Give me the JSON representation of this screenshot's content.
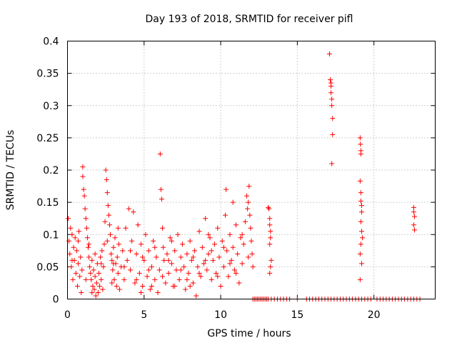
{
  "chart_data": {
    "type": "scatter",
    "title": "Day 193 of 2018, SRMTID for receiver pifl",
    "xlabel": "GPS time / hours",
    "ylabel": "SRMTID / TECUs",
    "xlim": [
      0,
      24
    ],
    "ylim": [
      0,
      0.4
    ],
    "xticks": [
      0,
      5,
      10,
      15,
      20
    ],
    "xtick_labels": [
      "0",
      "5",
      "10",
      "15",
      "20"
    ],
    "yticks": [
      0,
      0.05,
      0.1,
      0.15,
      0.2,
      0.25,
      0.3,
      0.35,
      0.4
    ],
    "ytick_labels": [
      "0",
      "0.05",
      "0.1",
      "0.15",
      "0.2",
      "0.25",
      "0.3",
      "0.35",
      "0.4"
    ],
    "grid": true,
    "marker": "plus",
    "color": "#ff0000",
    "series": [
      {
        "name": "SRMTID",
        "points": [
          [
            0.05,
            0.125
          ],
          [
            0.1,
            0.09
          ],
          [
            0.15,
            0.07
          ],
          [
            0.2,
            0.11
          ],
          [
            0.25,
            0.05
          ],
          [
            0.3,
            0.1
          ],
          [
            0.35,
            0.03
          ],
          [
            0.4,
            0.08
          ],
          [
            0.45,
            0.06
          ],
          [
            0.5,
            0.095
          ],
          [
            0.55,
            0.04
          ],
          [
            0.6,
            0.075
          ],
          [
            0.65,
            0.02
          ],
          [
            0.7,
            0.055
          ],
          [
            0.75,
            0.105
          ],
          [
            0.8,
            0.035
          ],
          [
            0.85,
            0.065
          ],
          [
            0.9,
            0.01
          ],
          [
            0.95,
            0.045
          ],
          [
            1.0,
            0.205
          ],
          [
            1.0,
            0.19
          ],
          [
            1.05,
            0.17
          ],
          [
            1.1,
            0.16
          ],
          [
            1.15,
            0.14
          ],
          [
            1.2,
            0.125
          ],
          [
            1.25,
            0.11
          ],
          [
            1.3,
            0.095
          ],
          [
            1.35,
            0.08
          ],
          [
            1.4,
            0.065
          ],
          [
            1.45,
            0.05
          ],
          [
            1.5,
            0.04
          ],
          [
            1.55,
            0.03
          ],
          [
            1.6,
            0.06
          ],
          [
            1.65,
            0.02
          ],
          [
            1.7,
            0.045
          ],
          [
            1.75,
            0.015
          ],
          [
            1.8,
            0.035
          ],
          [
            1.85,
            0.005
          ],
          [
            1.9,
            0.025
          ],
          [
            1.95,
            0.055
          ],
          [
            2.0,
            0.01
          ],
          [
            2.05,
            0.04
          ],
          [
            2.1,
            0.02
          ],
          [
            2.15,
            0.065
          ],
          [
            2.2,
            0.03
          ],
          [
            2.25,
            0.075
          ],
          [
            2.3,
            0.015
          ],
          [
            2.35,
            0.05
          ],
          [
            2.4,
            0.085
          ],
          [
            2.45,
            0.12
          ],
          [
            2.5,
            0.2
          ],
          [
            2.55,
            0.185
          ],
          [
            2.6,
            0.165
          ],
          [
            2.65,
            0.145
          ],
          [
            2.7,
            0.13
          ],
          [
            2.75,
            0.115
          ],
          [
            2.8,
            0.1
          ],
          [
            2.85,
            0.07
          ],
          [
            2.9,
            0.06
          ],
          [
            2.95,
            0.045
          ],
          [
            3.0,
            0.08
          ],
          [
            3.05,
            0.03
          ],
          [
            3.1,
            0.095
          ],
          [
            3.15,
            0.055
          ],
          [
            3.2,
            0.02
          ],
          [
            3.25,
            0.065
          ],
          [
            3.3,
            0.04
          ],
          [
            3.35,
            0.085
          ],
          [
            3.4,
            0.015
          ],
          [
            3.5,
            0.05
          ],
          [
            3.6,
            0.075
          ],
          [
            3.7,
            0.03
          ],
          [
            3.8,
            0.11
          ],
          [
            3.9,
            0.06
          ],
          [
            4.0,
            0.14
          ],
          [
            4.1,
            0.045
          ],
          [
            4.2,
            0.09
          ],
          [
            4.3,
            0.135
          ],
          [
            4.4,
            0.025
          ],
          [
            4.5,
            0.07
          ],
          [
            4.6,
            0.115
          ],
          [
            4.7,
            0.04
          ],
          [
            4.8,
            0.085
          ],
          [
            4.9,
            0.02
          ],
          [
            5.0,
            0.06
          ],
          [
            5.1,
            0.1
          ],
          [
            5.2,
            0.035
          ],
          [
            5.3,
            0.075
          ],
          [
            5.4,
            0.015
          ],
          [
            5.5,
            0.05
          ],
          [
            5.6,
            0.09
          ],
          [
            5.7,
            0.03
          ],
          [
            5.8,
            0.065
          ],
          [
            5.9,
            0.01
          ],
          [
            6.0,
            0.045
          ],
          [
            6.05,
            0.225
          ],
          [
            6.1,
            0.17
          ],
          [
            6.15,
            0.155
          ],
          [
            6.2,
            0.11
          ],
          [
            6.25,
            0.08
          ],
          [
            6.3,
            0.06
          ],
          [
            6.4,
            0.025
          ],
          [
            6.5,
            0.07
          ],
          [
            6.6,
            0.04
          ],
          [
            6.7,
            0.095
          ],
          [
            6.8,
            0.055
          ],
          [
            6.9,
            0.02
          ],
          [
            7.0,
            0.075
          ],
          [
            7.1,
            0.045
          ],
          [
            7.2,
            0.1
          ],
          [
            7.3,
            0.03
          ],
          [
            7.4,
            0.065
          ],
          [
            7.5,
            0.085
          ],
          [
            7.6,
            0.05
          ],
          [
            7.7,
            0.015
          ],
          [
            7.8,
            0.07
          ],
          [
            7.9,
            0.04
          ],
          [
            8.0,
            0.09
          ],
          [
            8.1,
            0.06
          ],
          [
            8.2,
            0.025
          ],
          [
            8.3,
            0.075
          ],
          [
            8.4,
            0.005
          ],
          [
            8.5,
            0.05
          ],
          [
            8.6,
            0.105
          ],
          [
            8.7,
            0.035
          ],
          [
            8.8,
            0.08
          ],
          [
            8.9,
            0.055
          ],
          [
            9.0,
            0.125
          ],
          [
            9.1,
            0.045
          ],
          [
            9.2,
            0.07
          ],
          [
            9.3,
            0.095
          ],
          [
            9.4,
            0.03
          ],
          [
            9.5,
            0.06
          ],
          [
            9.6,
            0.085
          ],
          [
            9.7,
            0.04
          ],
          [
            9.8,
            0.11
          ],
          [
            9.9,
            0.065
          ],
          [
            10.0,
            0.02
          ],
          [
            10.1,
            0.09
          ],
          [
            10.2,
            0.05
          ],
          [
            10.3,
            0.13
          ],
          [
            10.35,
            0.17
          ],
          [
            10.4,
            0.075
          ],
          [
            10.5,
            0.035
          ],
          [
            10.6,
            0.1
          ],
          [
            10.7,
            0.06
          ],
          [
            10.8,
            0.08
          ],
          [
            10.9,
            0.045
          ],
          [
            11.0,
            0.115
          ],
          [
            11.1,
            0.07
          ],
          [
            11.2,
            0.025
          ],
          [
            11.3,
            0.095
          ],
          [
            11.4,
            0.055
          ],
          [
            11.5,
            0.085
          ],
          [
            11.6,
            0.12
          ],
          [
            11.7,
            0.16
          ],
          [
            11.75,
            0.14
          ],
          [
            11.8,
            0.15
          ],
          [
            11.85,
            0.175
          ],
          [
            11.9,
            0.13
          ],
          [
            11.95,
            0.11
          ],
          [
            12.0,
            0.09
          ],
          [
            12.05,
            0.07
          ],
          [
            12.1,
            0.05
          ],
          [
            1.2,
            0.03
          ],
          [
            1.4,
            0.085
          ],
          [
            1.6,
            0.01
          ],
          [
            1.8,
            0.07
          ],
          [
            2.2,
            0.055
          ],
          [
            2.6,
            0.09
          ],
          [
            2.9,
            0.025
          ],
          [
            3.3,
            0.11
          ],
          [
            3.7,
            0.05
          ],
          [
            4.1,
            0.075
          ],
          [
            4.5,
            0.03
          ],
          [
            4.9,
            0.065
          ],
          [
            5.3,
            0.045
          ],
          [
            5.7,
            0.08
          ],
          [
            6.2,
            0.035
          ],
          [
            6.6,
            0.06
          ],
          [
            7.0,
            0.02
          ],
          [
            7.4,
            0.045
          ],
          [
            7.8,
            0.03
          ],
          [
            8.2,
            0.065
          ],
          [
            8.6,
            0.04
          ],
          [
            9.0,
            0.06
          ],
          [
            9.4,
            0.075
          ],
          [
            9.8,
            0.035
          ],
          [
            10.2,
            0.08
          ],
          [
            10.6,
            0.055
          ],
          [
            11.0,
            0.04
          ],
          [
            11.4,
            0.1
          ],
          [
            11.8,
            0.065
          ],
          [
            0.3,
            0.06
          ],
          [
            0.7,
            0.09
          ],
          [
            3.0,
            0.055
          ],
          [
            4.8,
            0.01
          ],
          [
            5.5,
            0.02
          ],
          [
            6.8,
            0.09
          ],
          [
            8.0,
            0.02
          ],
          [
            9.2,
            0.1
          ],
          [
            10.8,
            0.15
          ],
          [
            13.1,
            0.142
          ],
          [
            13.15,
            0.14
          ],
          [
            13.2,
            0.125
          ],
          [
            13.2,
            0.115
          ],
          [
            13.25,
            0.105
          ],
          [
            13.25,
            0.095
          ],
          [
            13.2,
            0.085
          ],
          [
            13.3,
            0.06
          ],
          [
            13.25,
            0.05
          ],
          [
            13.2,
            0.04
          ],
          [
            17.1,
            0.38
          ],
          [
            17.15,
            0.34
          ],
          [
            17.2,
            0.335
          ],
          [
            17.2,
            0.33
          ],
          [
            17.2,
            0.32
          ],
          [
            17.25,
            0.31
          ],
          [
            17.25,
            0.3
          ],
          [
            17.3,
            0.28
          ],
          [
            17.3,
            0.255
          ],
          [
            17.25,
            0.21
          ],
          [
            19.1,
            0.25
          ],
          [
            19.12,
            0.24
          ],
          [
            19.15,
            0.23
          ],
          [
            19.15,
            0.225
          ],
          [
            19.1,
            0.183
          ],
          [
            19.15,
            0.165
          ],
          [
            19.15,
            0.152
          ],
          [
            19.2,
            0.145
          ],
          [
            19.2,
            0.135
          ],
          [
            19.15,
            0.12
          ],
          [
            19.2,
            0.105
          ],
          [
            19.25,
            0.095
          ],
          [
            19.15,
            0.085
          ],
          [
            19.1,
            0.07
          ],
          [
            19.2,
            0.055
          ],
          [
            19.1,
            0.03
          ],
          [
            22.6,
            0.142
          ],
          [
            22.6,
            0.135
          ],
          [
            22.65,
            0.128
          ],
          [
            22.6,
            0.115
          ],
          [
            22.65,
            0.107
          ],
          [
            12.1,
            0
          ],
          [
            12.2,
            0
          ],
          [
            12.3,
            0
          ],
          [
            12.4,
            0
          ],
          [
            12.5,
            0
          ],
          [
            12.6,
            0
          ],
          [
            12.7,
            0
          ],
          [
            12.8,
            0
          ],
          [
            12.9,
            0
          ],
          [
            13.0,
            0
          ],
          [
            13.1,
            0
          ],
          [
            13.3,
            0
          ],
          [
            13.5,
            0
          ],
          [
            13.7,
            0
          ],
          [
            13.9,
            0
          ],
          [
            14.1,
            0
          ],
          [
            14.3,
            0
          ],
          [
            14.5,
            0
          ],
          [
            15.0,
            0
          ],
          [
            15.6,
            0
          ],
          [
            15.8,
            0
          ],
          [
            16.0,
            0
          ],
          [
            16.2,
            0
          ],
          [
            16.4,
            0
          ],
          [
            16.6,
            0
          ],
          [
            16.8,
            0
          ],
          [
            17.0,
            0
          ],
          [
            17.2,
            0
          ],
          [
            17.4,
            0
          ],
          [
            17.6,
            0
          ],
          [
            17.8,
            0
          ],
          [
            18.0,
            0
          ],
          [
            18.2,
            0
          ],
          [
            18.4,
            0
          ],
          [
            18.6,
            0
          ],
          [
            18.8,
            0
          ],
          [
            19.0,
            0
          ],
          [
            19.2,
            0
          ],
          [
            19.4,
            0
          ],
          [
            19.6,
            0
          ],
          [
            19.8,
            0
          ],
          [
            20.2,
            0
          ],
          [
            20.4,
            0
          ],
          [
            20.6,
            0
          ],
          [
            20.8,
            0
          ],
          [
            21.0,
            0
          ],
          [
            21.2,
            0
          ],
          [
            21.4,
            0
          ],
          [
            21.6,
            0
          ],
          [
            21.8,
            0
          ],
          [
            22.0,
            0
          ],
          [
            22.2,
            0
          ],
          [
            22.4,
            0
          ],
          [
            22.6,
            0
          ],
          [
            22.8,
            0
          ],
          [
            23.0,
            0
          ]
        ]
      }
    ]
  }
}
